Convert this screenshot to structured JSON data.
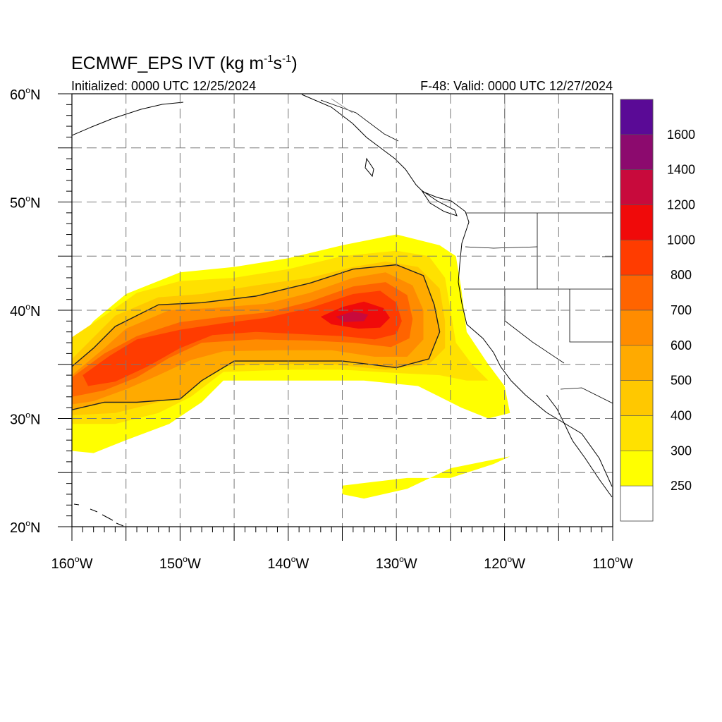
{
  "header": {
    "title_main": "ECMWF_EPS IVT (kg m",
    "title_sup1": "-1",
    "title_mid": "s",
    "title_sup2": "-1",
    "title_end": ")",
    "initialized": "Initialized: 0000 UTC 12/25/2024",
    "valid": "F-48: Valid: 0000 UTC 12/27/2024"
  },
  "map": {
    "lon_range": [
      -160,
      -110
    ],
    "lat_range": [
      20,
      60
    ],
    "lat_labels": [
      {
        "lat": 60,
        "text": "60",
        "hemi": "N"
      },
      {
        "lat": 50,
        "text": "50",
        "hemi": "N"
      },
      {
        "lat": 40,
        "text": "40",
        "hemi": "N"
      },
      {
        "lat": 30,
        "text": "30",
        "hemi": "N"
      },
      {
        "lat": 20,
        "text": "20",
        "hemi": "N"
      }
    ],
    "lon_labels": [
      {
        "lon": -160,
        "text": "160",
        "hemi": "W"
      },
      {
        "lon": -150,
        "text": "150",
        "hemi": "W"
      },
      {
        "lon": -140,
        "text": "140",
        "hemi": "W"
      },
      {
        "lon": -130,
        "text": "130",
        "hemi": "W"
      },
      {
        "lon": -120,
        "text": "120",
        "hemi": "W"
      },
      {
        "lon": -110,
        "text": "110",
        "hemi": "W"
      }
    ],
    "grid_lons": [
      -155,
      -150,
      -145,
      -140,
      -135,
      -130,
      -125,
      -120,
      -115
    ],
    "grid_lats": [
      25,
      30,
      35,
      40,
      45,
      50,
      55
    ],
    "contour_level": 500,
    "ivt_fields": [
      {
        "level": 250,
        "ring": [
          [
            -160,
            36.5
          ],
          [
            -158,
            39
          ],
          [
            -155,
            41.5
          ],
          [
            -150,
            43.5
          ],
          [
            -145,
            44
          ],
          [
            -140,
            44.8
          ],
          [
            -135,
            46
          ],
          [
            -130,
            47
          ],
          [
            -126,
            46
          ],
          [
            -124.5,
            45
          ],
          [
            -124,
            42
          ],
          [
            -123.5,
            38
          ],
          [
            -121.5,
            35
          ],
          [
            -120,
            33
          ],
          [
            -119.5,
            30.5
          ],
          [
            -121.5,
            30
          ],
          [
            -124,
            31
          ],
          [
            -126,
            32
          ],
          [
            -128,
            33
          ],
          [
            -133,
            33.5
          ],
          [
            -140,
            33.5
          ],
          [
            -146,
            33.5
          ],
          [
            -148,
            31.5
          ],
          [
            -151,
            29.5
          ],
          [
            -155,
            28
          ],
          [
            -158,
            26.8
          ],
          [
            -160,
            27
          ]
        ]
      },
      {
        "level": 250,
        "ring": [
          [
            -135,
            23.8
          ],
          [
            -129,
            24.5
          ],
          [
            -125,
            24.5
          ],
          [
            -121,
            25.8
          ],
          [
            -119.5,
            26.5
          ],
          [
            -121,
            26.2
          ],
          [
            -125,
            25.4
          ],
          [
            -129,
            23.5
          ],
          [
            -133,
            22.6
          ],
          [
            -135,
            23
          ]
        ]
      },
      {
        "level": 300,
        "ring": [
          [
            -160,
            37.5
          ],
          [
            -157,
            39.5
          ],
          [
            -154,
            41.6
          ],
          [
            -150,
            42.7
          ],
          [
            -145,
            43
          ],
          [
            -140,
            43.8
          ],
          [
            -135,
            45
          ],
          [
            -130,
            45.5
          ],
          [
            -127,
            45
          ],
          [
            -125.5,
            43
          ],
          [
            -125,
            40
          ],
          [
            -124.5,
            37
          ],
          [
            -123,
            35
          ],
          [
            -121.5,
            33.5
          ],
          [
            -123.5,
            33.5
          ],
          [
            -126,
            34
          ],
          [
            -130,
            34.2
          ],
          [
            -135,
            34.5
          ],
          [
            -140,
            34.5
          ],
          [
            -146,
            34.3
          ],
          [
            -149,
            32
          ],
          [
            -152,
            30.5
          ],
          [
            -156,
            29.5
          ],
          [
            -160,
            29.5
          ]
        ]
      },
      {
        "level": 400,
        "ring": [
          [
            -160,
            35.5
          ],
          [
            -158,
            37.5
          ],
          [
            -156,
            39.5
          ],
          [
            -152,
            41.2
          ],
          [
            -148,
            41.5
          ],
          [
            -143,
            42.3
          ],
          [
            -138,
            43
          ],
          [
            -134,
            44
          ],
          [
            -131,
            44.5
          ],
          [
            -128,
            44
          ],
          [
            -126,
            42
          ],
          [
            -125.5,
            39
          ],
          [
            -125.5,
            36.5
          ],
          [
            -127,
            35
          ],
          [
            -131,
            34.5
          ],
          [
            -136,
            35
          ],
          [
            -142,
            35
          ],
          [
            -146,
            34.8
          ],
          [
            -149,
            33
          ],
          [
            -152,
            31.5
          ],
          [
            -156,
            30.5
          ],
          [
            -160,
            30.3
          ]
        ]
      },
      {
        "level": 500,
        "ring": [
          [
            -160,
            34.8
          ],
          [
            -158,
            36.5
          ],
          [
            -156,
            38.5
          ],
          [
            -152,
            40.5
          ],
          [
            -148,
            40.7
          ],
          [
            -143,
            41.3
          ],
          [
            -138,
            42.5
          ],
          [
            -134,
            43.8
          ],
          [
            -130,
            44.2
          ],
          [
            -127.5,
            43.2
          ],
          [
            -126.5,
            40.5
          ],
          [
            -126,
            38
          ],
          [
            -127,
            35.5
          ],
          [
            -130,
            34.7
          ],
          [
            -135,
            35.3
          ],
          [
            -140,
            35.3
          ],
          [
            -145,
            35.3
          ],
          [
            -148,
            33.5
          ],
          [
            -150,
            31.8
          ],
          [
            -154,
            31.5
          ],
          [
            -157,
            31.5
          ],
          [
            -160,
            30.8
          ]
        ]
      },
      {
        "level": 600,
        "ring": [
          [
            -160,
            34
          ],
          [
            -157,
            36.5
          ],
          [
            -155,
            38.3
          ],
          [
            -151,
            40
          ],
          [
            -147,
            40.2
          ],
          [
            -142,
            40.6
          ],
          [
            -138,
            41.6
          ],
          [
            -134,
            43
          ],
          [
            -131,
            43.5
          ],
          [
            -128.5,
            42.3
          ],
          [
            -127.5,
            40
          ],
          [
            -127.5,
            37.3
          ],
          [
            -129,
            35.7
          ],
          [
            -132,
            35.7
          ],
          [
            -136,
            36.3
          ],
          [
            -141,
            36.3
          ],
          [
            -146,
            36.2
          ],
          [
            -149,
            35.4
          ],
          [
            -152,
            34
          ],
          [
            -155,
            32.7
          ],
          [
            -158,
            31.6
          ],
          [
            -160,
            31.3
          ]
        ]
      },
      {
        "level": 700,
        "ring": [
          [
            -160,
            33.8
          ],
          [
            -157,
            36
          ],
          [
            -154,
            37.6
          ],
          [
            -150,
            38.9
          ],
          [
            -146,
            39.4
          ],
          [
            -142,
            39.8
          ],
          [
            -138,
            40.8
          ],
          [
            -134,
            42.2
          ],
          [
            -131,
            42.6
          ],
          [
            -129,
            41.4
          ],
          [
            -128.5,
            39.2
          ],
          [
            -128.8,
            37.4
          ],
          [
            -130.5,
            36.6
          ],
          [
            -134,
            37
          ],
          [
            -138,
            37.2
          ],
          [
            -143,
            37.3
          ],
          [
            -148,
            37
          ],
          [
            -151,
            35.6
          ],
          [
            -154,
            33.8
          ],
          [
            -157,
            32.6
          ],
          [
            -160,
            32
          ]
        ]
      },
      {
        "level": 800,
        "ring": [
          [
            -159,
            34
          ],
          [
            -156.5,
            35.8
          ],
          [
            -154,
            37.3
          ],
          [
            -150,
            38.2
          ],
          [
            -146,
            38.8
          ],
          [
            -142,
            39.3
          ],
          [
            -138,
            40.2
          ],
          [
            -134,
            41.5
          ],
          [
            -131.5,
            41.8
          ],
          [
            -130,
            40.7
          ],
          [
            -129.5,
            39
          ],
          [
            -130,
            37.8
          ],
          [
            -132,
            37.3
          ],
          [
            -135,
            37.6
          ],
          [
            -139,
            37.8
          ],
          [
            -143,
            38
          ],
          [
            -147,
            37.7
          ],
          [
            -150,
            36.5
          ],
          [
            -153,
            34.8
          ],
          [
            -156,
            33.4
          ],
          [
            -158.5,
            33
          ]
        ]
      },
      {
        "level": 1000,
        "ring": [
          [
            -137,
            39.4
          ],
          [
            -135,
            40.3
          ],
          [
            -133,
            40.8
          ],
          [
            -131.2,
            40.2
          ],
          [
            -130.6,
            39.3
          ],
          [
            -131.5,
            38.4
          ],
          [
            -133.5,
            38.3
          ],
          [
            -136,
            38.7
          ]
        ]
      },
      {
        "level": 1200,
        "ring": [
          [
            -135.6,
            39.4
          ],
          [
            -134,
            39.9
          ],
          [
            -132.6,
            39.6
          ],
          [
            -133,
            39
          ],
          [
            -134.8,
            38.9
          ]
        ]
      }
    ]
  },
  "colorbar": {
    "labels": [
      "1600",
      "1400",
      "1200",
      "1000",
      "800",
      "700",
      "600",
      "500",
      "400",
      "300",
      "250"
    ],
    "levels": [
      250,
      300,
      400,
      500,
      600,
      700,
      800,
      1000,
      1200,
      1400,
      1600
    ],
    "colors": [
      "#ffffff",
      "#ffff00",
      "#ffe100",
      "#ffc800",
      "#ffaa00",
      "#ff8c00",
      "#ff6400",
      "#ff3c00",
      "#f00a0a",
      "#c80a3c",
      "#8c0a6e",
      "#5a0a96"
    ]
  }
}
